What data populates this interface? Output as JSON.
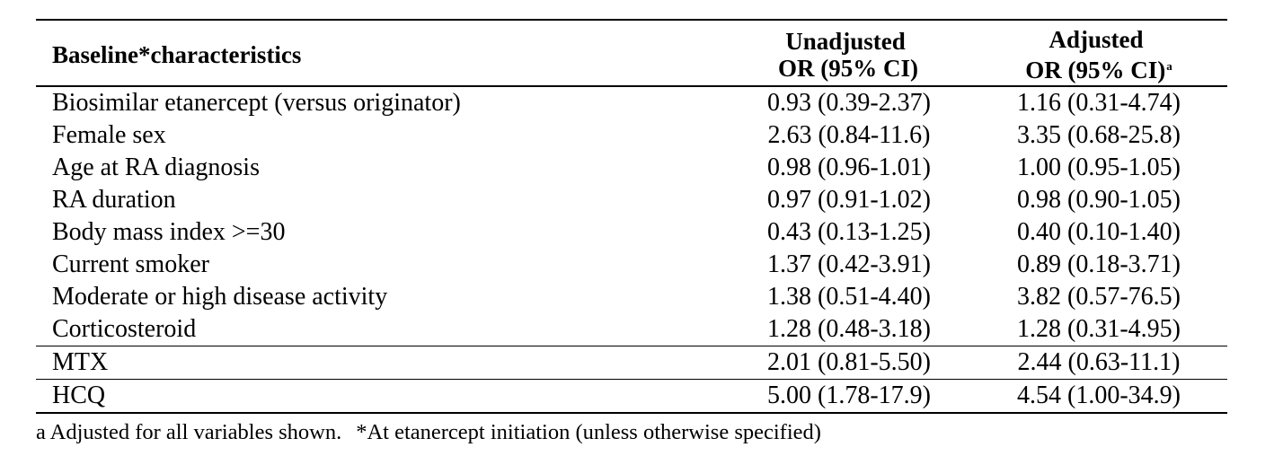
{
  "table": {
    "headers": {
      "characteristic": "Baseline*characteristics",
      "unadjusted_line1": "Unadjusted",
      "unadjusted_line2": "OR (95% CI)",
      "adjusted_line1": "Adjusted",
      "adjusted_line2": "OR (95% CI)",
      "adjusted_superscript": "a"
    },
    "rows": [
      {
        "label": "Biosimilar etanercept (versus originator)",
        "unadjusted": "0.93 (0.39-2.37)",
        "adjusted": "1.16 (0.31-4.74)"
      },
      {
        "label": "Female sex",
        "unadjusted": "2.63 (0.84-11.6)",
        "adjusted": "3.35 (0.68-25.8)"
      },
      {
        "label": "Age at RA diagnosis",
        "unadjusted": "0.98 (0.96-1.01)",
        "adjusted": "1.00 (0.95-1.05)"
      },
      {
        "label": "RA duration",
        "unadjusted": "0.97 (0.91-1.02)",
        "adjusted": "0.98 (0.90-1.05)"
      },
      {
        "label": "Body mass index >=30",
        "unadjusted": "0.43 (0.13-1.25)",
        "adjusted": "0.40 (0.10-1.40)"
      },
      {
        "label": "Current smoker",
        "unadjusted": "1.37 (0.42-3.91)",
        "adjusted": "0.89 (0.18-3.71)"
      },
      {
        "label": "Moderate or high disease activity",
        "unadjusted": "1.38 (0.51-4.40)",
        "adjusted": "3.82 (0.57-76.5)"
      },
      {
        "label": "Corticosteroid",
        "unadjusted": "1.28 (0.48-3.18)",
        "adjusted": "1.28 (0.31-4.95)"
      },
      {
        "label": "MTX",
        "unadjusted": "2.01 (0.81-5.50)",
        "adjusted": "2.44 (0.63-11.1)"
      },
      {
        "label": "HCQ",
        "unadjusted": "5.00 (1.78-17.9)",
        "adjusted": "4.54 (1.00-34.9)"
      }
    ]
  },
  "footnote": {
    "part1": "a Adjusted for all variables shown.",
    "part2": "*At etanercept initiation (unless otherwise specified)"
  }
}
